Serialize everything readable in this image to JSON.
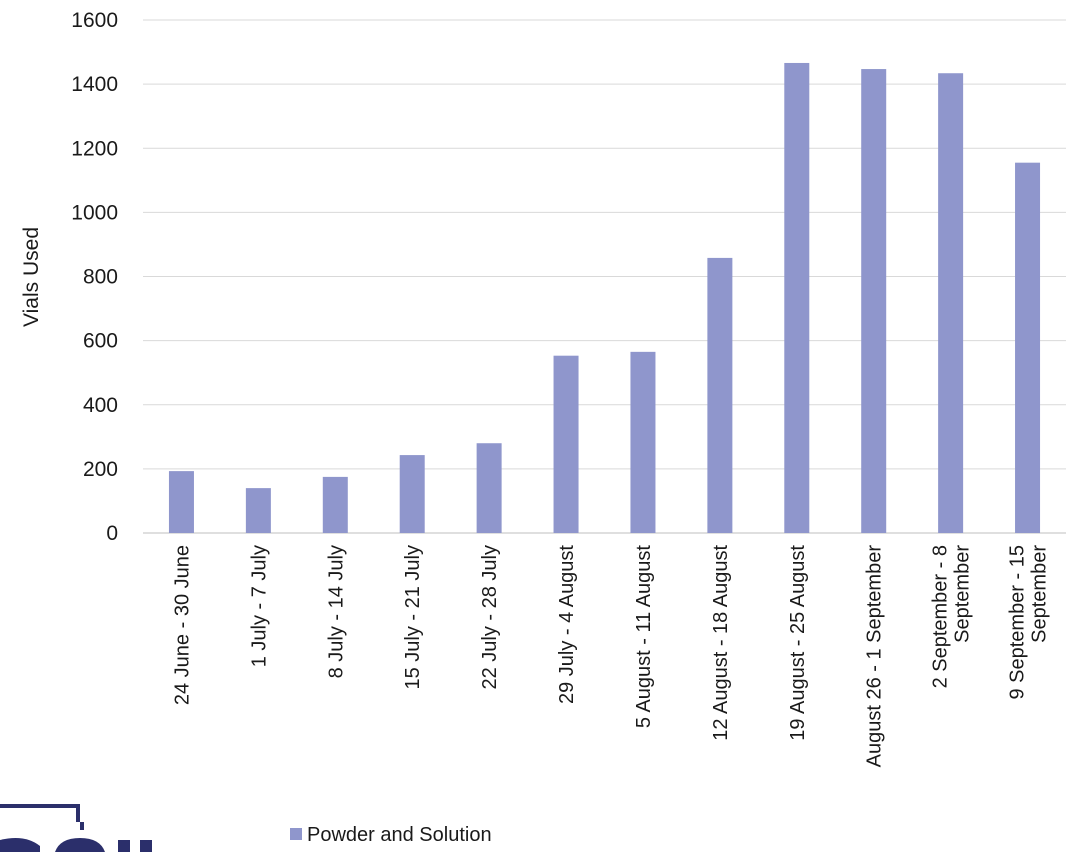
{
  "chart_data": {
    "type": "bar",
    "title": "",
    "xlabel": "",
    "ylabel": "Vials Used",
    "ylim": [
      0,
      1600
    ],
    "yticks": [
      0,
      200,
      400,
      600,
      800,
      1000,
      1200,
      1400,
      1600
    ],
    "grid": true,
    "legend_position": "bottom",
    "categories": [
      [
        "24 June - 30 June"
      ],
      [
        "1 July - 7 July"
      ],
      [
        "8 July - 14 July"
      ],
      [
        "15 July - 21 July"
      ],
      [
        "22 July - 28 July"
      ],
      [
        "29 July  - 4 August"
      ],
      [
        "5 August  - 11 August"
      ],
      [
        "12 August - 18 August"
      ],
      [
        "19 August - 25 August"
      ],
      [
        "August 26 - 1 September"
      ],
      [
        "2 September  - 8",
        "September"
      ],
      [
        "9 September - 15",
        "September"
      ]
    ],
    "series": [
      {
        "name": "Powder and Solution",
        "color": "#8f96cc",
        "values": [
          193,
          140,
          175,
          243,
          280,
          553,
          565,
          858,
          1466,
          1447,
          1434,
          1155
        ]
      }
    ]
  }
}
